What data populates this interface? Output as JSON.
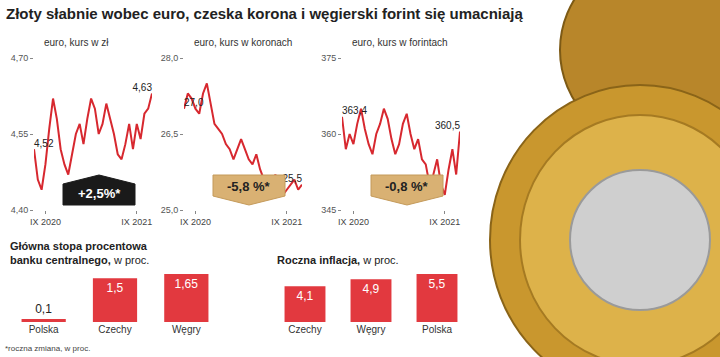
{
  "title": "Złoty słabnie wobec euro, czeska korona i węgierski forint się umacniają",
  "note": "*roczna zmiana, w proc.",
  "chart_data": [
    {
      "type": "line",
      "title": "euro, kurs w zł",
      "categories": [
        null,
        null,
        null,
        "IX 2020",
        null,
        null,
        null,
        null,
        null,
        null,
        null,
        null,
        null,
        null,
        null,
        null,
        null,
        null,
        null,
        null,
        null,
        null,
        null,
        null,
        null,
        null,
        null,
        "IX 2021",
        null,
        null,
        null,
        null
      ],
      "values": [
        4.52,
        4.46,
        4.44,
        4.49,
        4.56,
        4.62,
        4.58,
        4.52,
        4.49,
        4.47,
        4.51,
        4.55,
        4.57,
        4.53,
        4.58,
        4.62,
        4.6,
        4.55,
        4.57,
        4.61,
        4.58,
        4.55,
        4.51,
        4.5,
        4.53,
        4.57,
        4.52,
        4.57,
        4.54,
        4.59,
        4.6,
        4.63
      ],
      "value_labels": [
        "4,52",
        null,
        null,
        null,
        null,
        null,
        null,
        null,
        null,
        null,
        null,
        null,
        null,
        null,
        null,
        null,
        null,
        null,
        null,
        null,
        null,
        null,
        null,
        null,
        null,
        null,
        null,
        null,
        null,
        null,
        null,
        "4,63"
      ],
      "color": "#d7282f",
      "ylim": [
        4.4,
        4.7
      ],
      "yticks": [
        {
          "value": 4.4,
          "label": "4,40"
        },
        {
          "value": 4.55,
          "label": "4,55"
        },
        {
          "value": 4.7,
          "label": "4,70"
        }
      ],
      "grid": false,
      "annotations": [
        "+2,5%*"
      ]
    },
    {
      "type": "line",
      "title": "euro, kurs w koronach",
      "categories": [
        null,
        null,
        null,
        "IX 2020",
        null,
        null,
        null,
        null,
        null,
        null,
        null,
        null,
        null,
        null,
        null,
        null,
        null,
        null,
        null,
        null,
        null,
        null,
        null,
        null,
        null,
        null,
        null,
        "IX 2021",
        null,
        null,
        null,
        null
      ],
      "values": [
        27.0,
        27.3,
        27.2,
        27.0,
        26.9,
        27.3,
        27.5,
        27.1,
        26.7,
        26.6,
        26.5,
        26.3,
        26.2,
        26.0,
        26.2,
        26.4,
        26.2,
        26.0,
        25.9,
        26.1,
        25.8,
        25.6,
        25.4,
        25.5,
        25.7,
        25.5,
        25.3,
        25.4,
        25.5,
        25.6,
        25.4,
        25.5
      ],
      "value_labels": [
        "27,0",
        null,
        null,
        null,
        null,
        null,
        null,
        null,
        null,
        null,
        null,
        null,
        null,
        null,
        null,
        null,
        null,
        null,
        null,
        null,
        null,
        null,
        null,
        null,
        null,
        null,
        null,
        null,
        null,
        null,
        null,
        "25,5"
      ],
      "color": "#d7282f",
      "ylim": [
        25.0,
        28.0
      ],
      "yticks": [
        {
          "value": 25.0,
          "label": "25,0"
        },
        {
          "value": 26.5,
          "label": "26,5"
        },
        {
          "value": 28.0,
          "label": "28,0"
        }
      ],
      "grid": false,
      "annotations": [
        "-5,8 %*"
      ]
    },
    {
      "type": "line",
      "title": "euro, kurs w forintach",
      "categories": [
        null,
        null,
        null,
        "IX 2020",
        null,
        null,
        null,
        null,
        null,
        null,
        null,
        null,
        null,
        null,
        null,
        null,
        null,
        null,
        null,
        null,
        null,
        null,
        null,
        null,
        null,
        null,
        null,
        "IX 2021",
        null,
        null,
        null,
        null
      ],
      "values": [
        363.4,
        357,
        360,
        358,
        362,
        365,
        361,
        358,
        356,
        360,
        362,
        365,
        363,
        359,
        356,
        358,
        362,
        364,
        360,
        357,
        359,
        355,
        354,
        350,
        352,
        355,
        350,
        348,
        353,
        357,
        352,
        360.5
      ],
      "value_labels": [
        "363,4",
        null,
        null,
        null,
        null,
        null,
        null,
        null,
        null,
        null,
        null,
        null,
        null,
        null,
        null,
        null,
        null,
        null,
        null,
        null,
        null,
        null,
        null,
        null,
        null,
        null,
        null,
        null,
        null,
        null,
        null,
        "360,5"
      ],
      "color": "#d7282f",
      "ylim": [
        345,
        375
      ],
      "yticks": [
        345,
        360,
        375
      ],
      "grid": false,
      "annotations": [
        "-0,8 %*"
      ]
    },
    {
      "type": "bar",
      "title": "Główna stopa procentowa\nbanku centralnego,",
      "subtitle": "w proc.",
      "categories": [
        "Polska",
        "Czechy",
        "Węgry"
      ],
      "values": [
        0.1,
        1.5,
        1.65
      ],
      "value_labels": [
        "0,1",
        "1,5",
        "1,65"
      ],
      "color": "#e2393f",
      "ylim": [
        0,
        1.65
      ],
      "data_labels": true,
      "tick_labels": "x"
    },
    {
      "type": "bar",
      "title": "Roczna inflacja,",
      "subtitle": "w proc.",
      "categories": [
        "Czechy",
        "Węgry",
        "Polska"
      ],
      "values": [
        4.1,
        4.9,
        5.5
      ],
      "value_labels": [
        "4,1",
        "4,9",
        "5,5"
      ],
      "color": "#e2393f",
      "ylim": [
        0,
        5.5
      ],
      "data_labels": true,
      "tick_labels": "x"
    }
  ]
}
